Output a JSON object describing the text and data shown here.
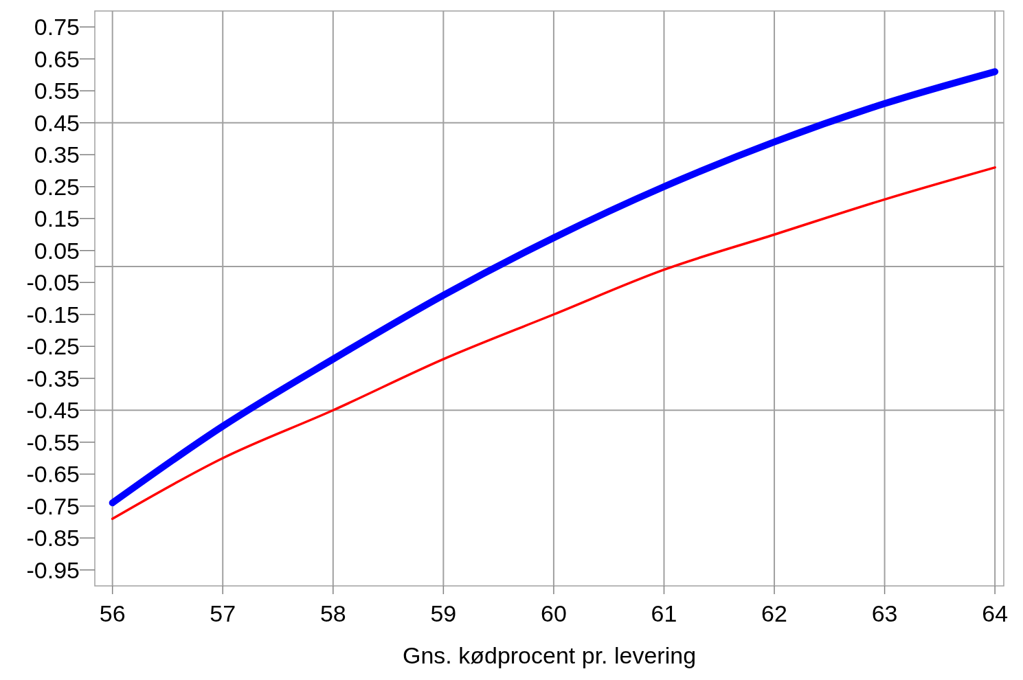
{
  "chart_data": {
    "type": "line",
    "xlabel": "Gns. kødprocent pr. levering",
    "x": [
      56,
      57,
      58,
      59,
      60,
      61,
      62,
      63,
      64
    ],
    "series": [
      {
        "color": "#0000ff",
        "values": [
          -0.74,
          -0.5,
          -0.29,
          -0.09,
          0.09,
          0.25,
          0.39,
          0.51,
          0.61
        ]
      },
      {
        "color": "#ff0000",
        "values": [
          -0.79,
          -0.6,
          -0.45,
          -0.29,
          -0.15,
          -0.01,
          0.1,
          0.21,
          0.31
        ]
      }
    ],
    "xlim": [
      55.84,
      64.08
    ],
    "xticks": [
      56,
      57,
      58,
      59,
      60,
      61,
      62,
      63,
      64
    ],
    "ylim": [
      -1.0,
      0.8
    ],
    "yticks": [
      0.75,
      0.65,
      0.55,
      0.45,
      0.35,
      0.25,
      0.15,
      0.05,
      -0.05,
      -0.15,
      -0.25,
      -0.35,
      -0.45,
      -0.55,
      -0.65,
      -0.75,
      -0.85,
      -0.95
    ],
    "grid": "x",
    "ref_lines": [
      {
        "axis": "y",
        "value": 0.45,
        "color": "#a0a0a0"
      },
      {
        "axis": "y",
        "value": 0,
        "color": "#a0a0a0"
      },
      {
        "axis": "y",
        "value": -0.45,
        "color": "#a0a0a0"
      }
    ]
  }
}
